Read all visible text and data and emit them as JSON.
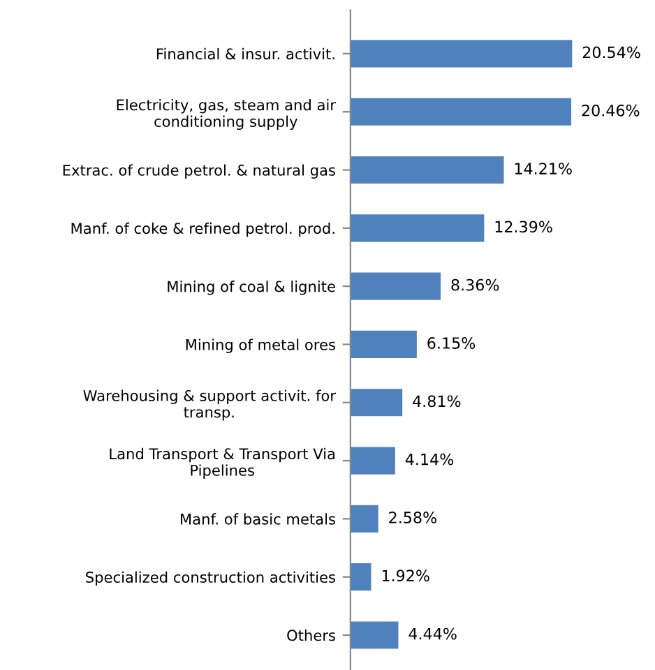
{
  "chart_data": {
    "type": "bar",
    "orientation": "horizontal",
    "grid": false,
    "legend": false,
    "categories": [
      "Financial & insur. activit.",
      "Electricity, gas, steam and air\nconditioning supply",
      "Extrac. of crude petrol. & natural gas",
      "Manf. of coke & refined petrol. prod.",
      "Mining of coal & lignite",
      "Mining of metal ores",
      "Warehousing & support activit. for\ntransp.",
      "Land Transport & Transport Via\nPipelines",
      "Manf. of basic metals",
      "Specialized construction activities",
      "Others"
    ],
    "values": [
      20.54,
      20.46,
      14.21,
      12.39,
      8.36,
      6.15,
      4.81,
      4.14,
      2.58,
      1.92,
      4.44
    ],
    "value_labels": [
      "20.54%",
      "20.46%",
      "14.21%",
      "12.39%",
      "8.36%",
      "6.15%",
      "4.81%",
      "4.14%",
      "2.58%",
      "1.92%",
      "4.44%"
    ],
    "color": "#4f81bd"
  }
}
